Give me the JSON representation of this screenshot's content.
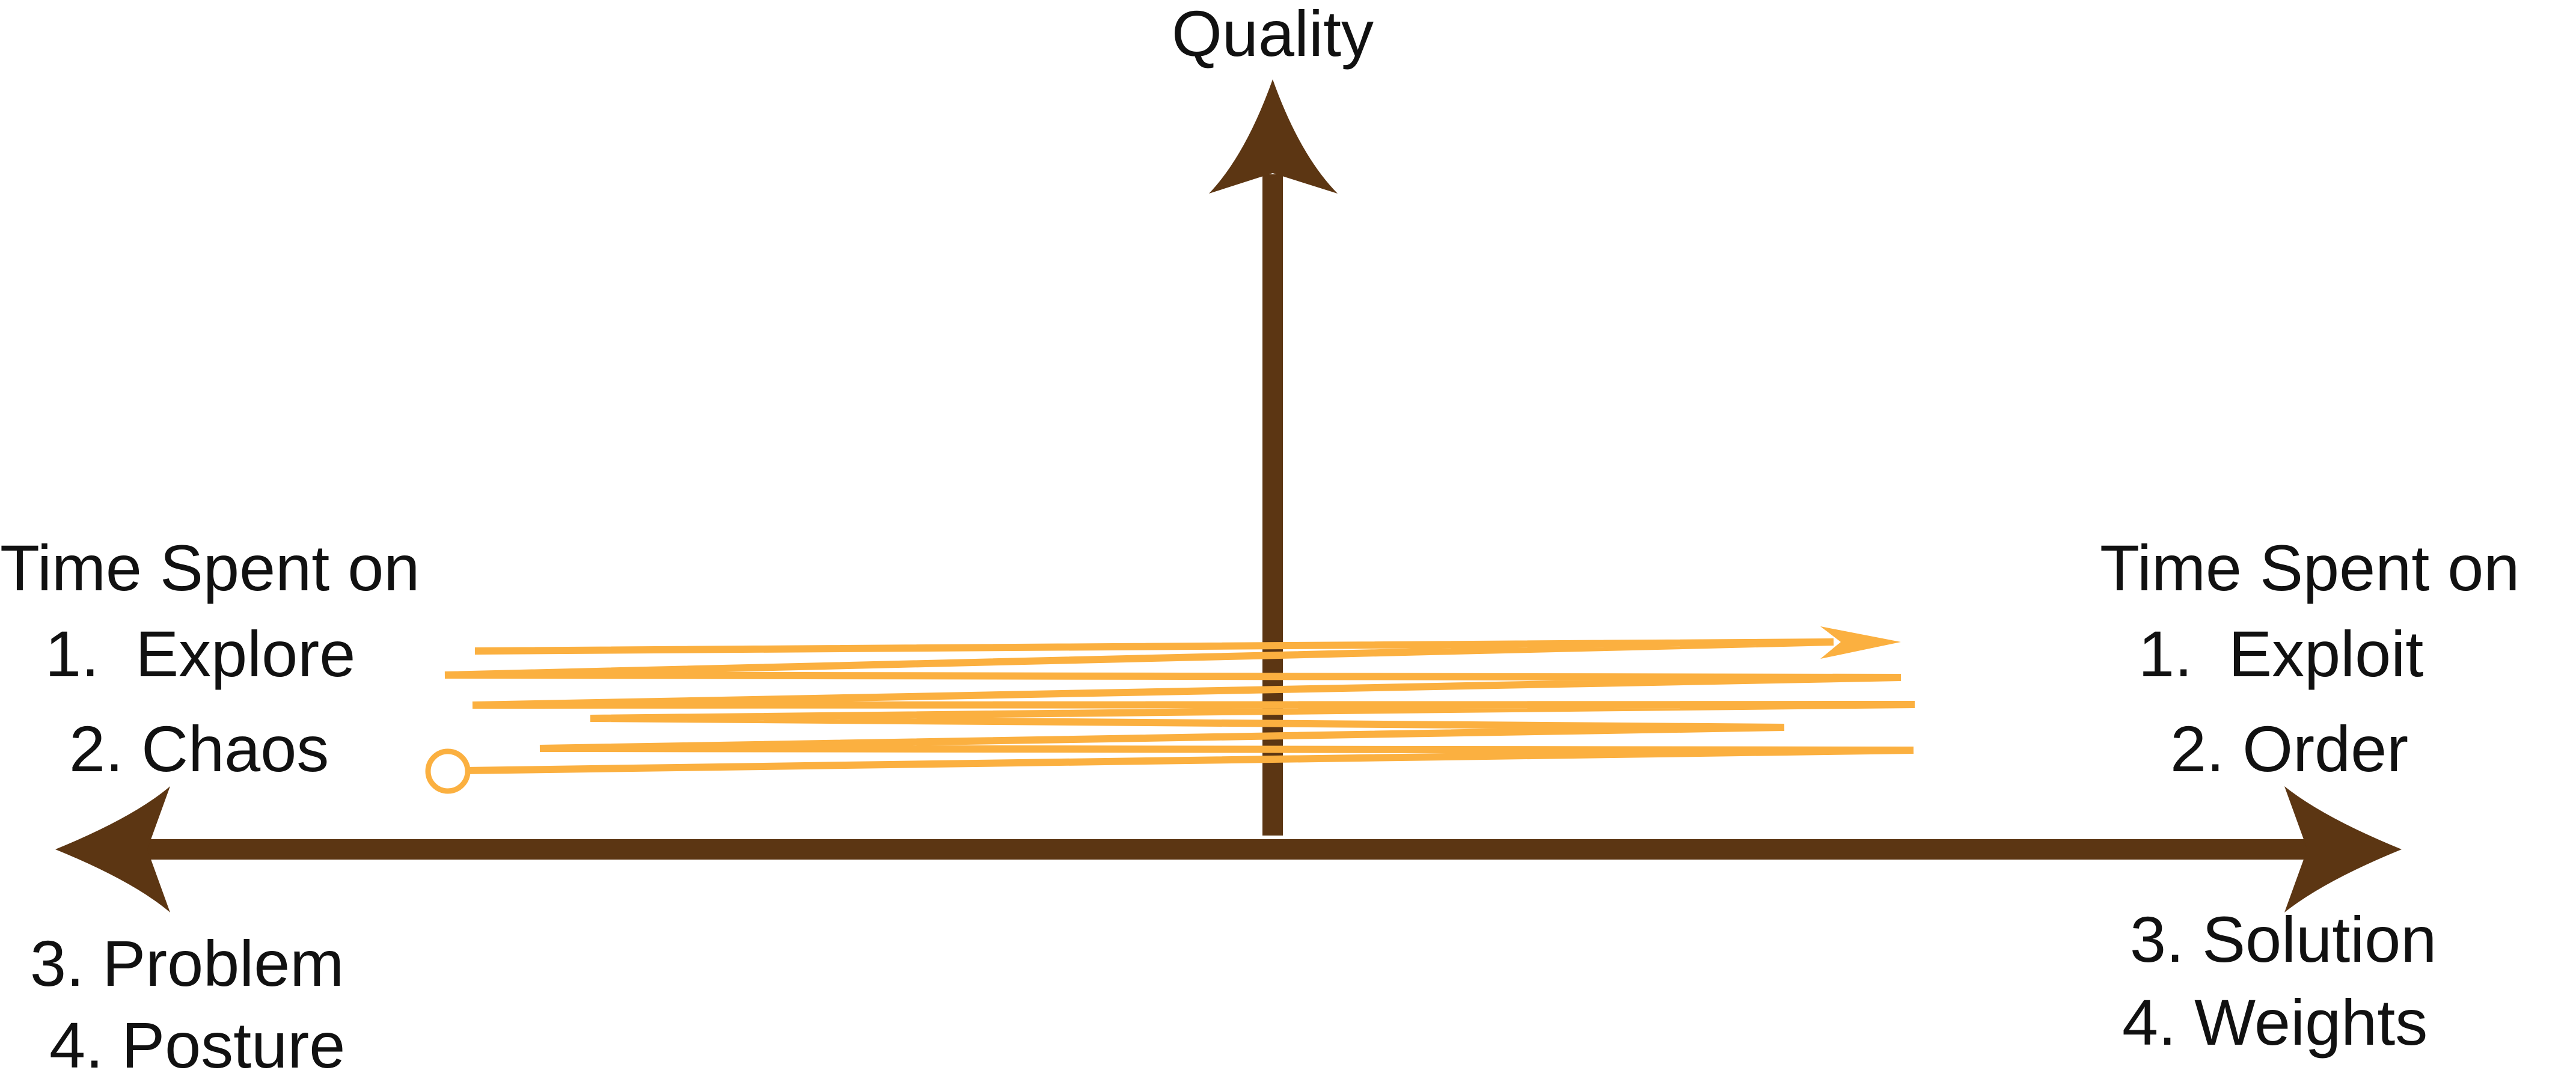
{
  "colors": {
    "axis": "#5c3613",
    "path": "#fbb040",
    "text": "#111111",
    "background": "#ffffff"
  },
  "labels": {
    "y_axis": "Quality",
    "left": {
      "heading": "Time Spent on",
      "items": [
        "1.  Explore",
        "2. Chaos"
      ],
      "below": [
        "3. Problem",
        "4. Posture"
      ]
    },
    "right": {
      "heading": "Time Spent on",
      "items": [
        "1.  Exploit",
        "2. Order"
      ],
      "below": [
        "3. Solution",
        "4. Weights"
      ]
    }
  }
}
